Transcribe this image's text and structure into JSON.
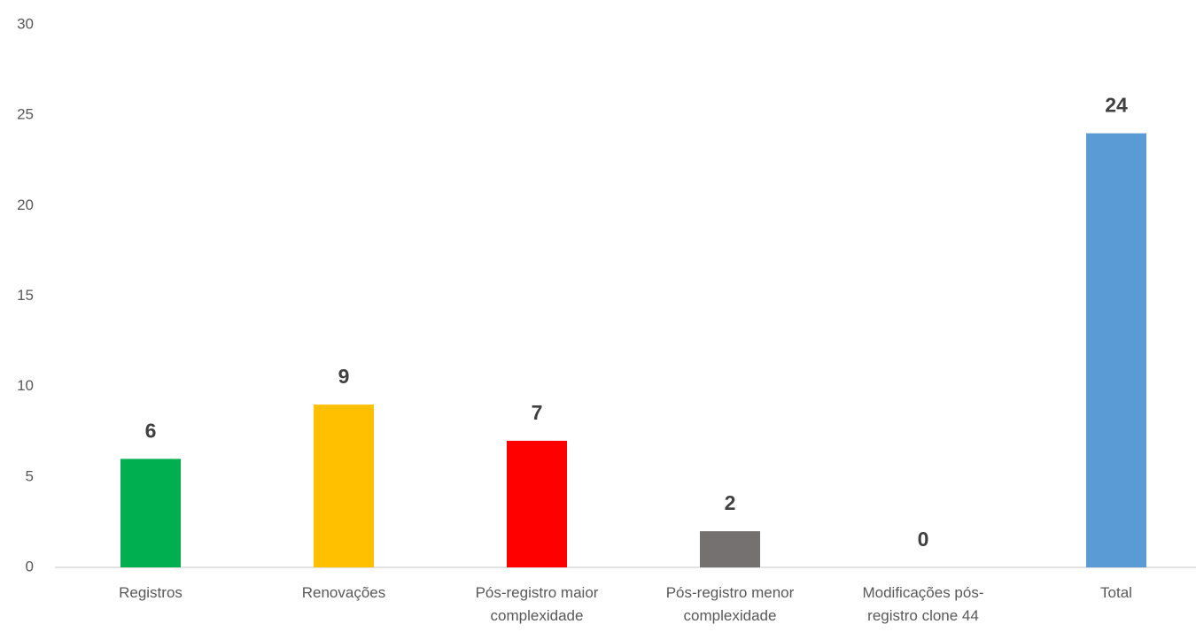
{
  "chart_data": {
    "type": "bar",
    "categories": [
      "Registros",
      "Renovações",
      "Pós-registro maior complexidade",
      "Pós-registro menor complexidade",
      "Modificações pós-registro clone 44",
      "Total"
    ],
    "values": [
      6,
      9,
      7,
      2,
      0,
      24
    ],
    "colors": [
      "#00b050",
      "#ffc000",
      "#ff0000",
      "#767171",
      "#a5a5a5",
      "#5b9bd5"
    ],
    "ylim": [
      0,
      30
    ],
    "yticks": [
      0,
      5,
      10,
      15,
      20,
      25,
      30
    ],
    "grid": false
  }
}
